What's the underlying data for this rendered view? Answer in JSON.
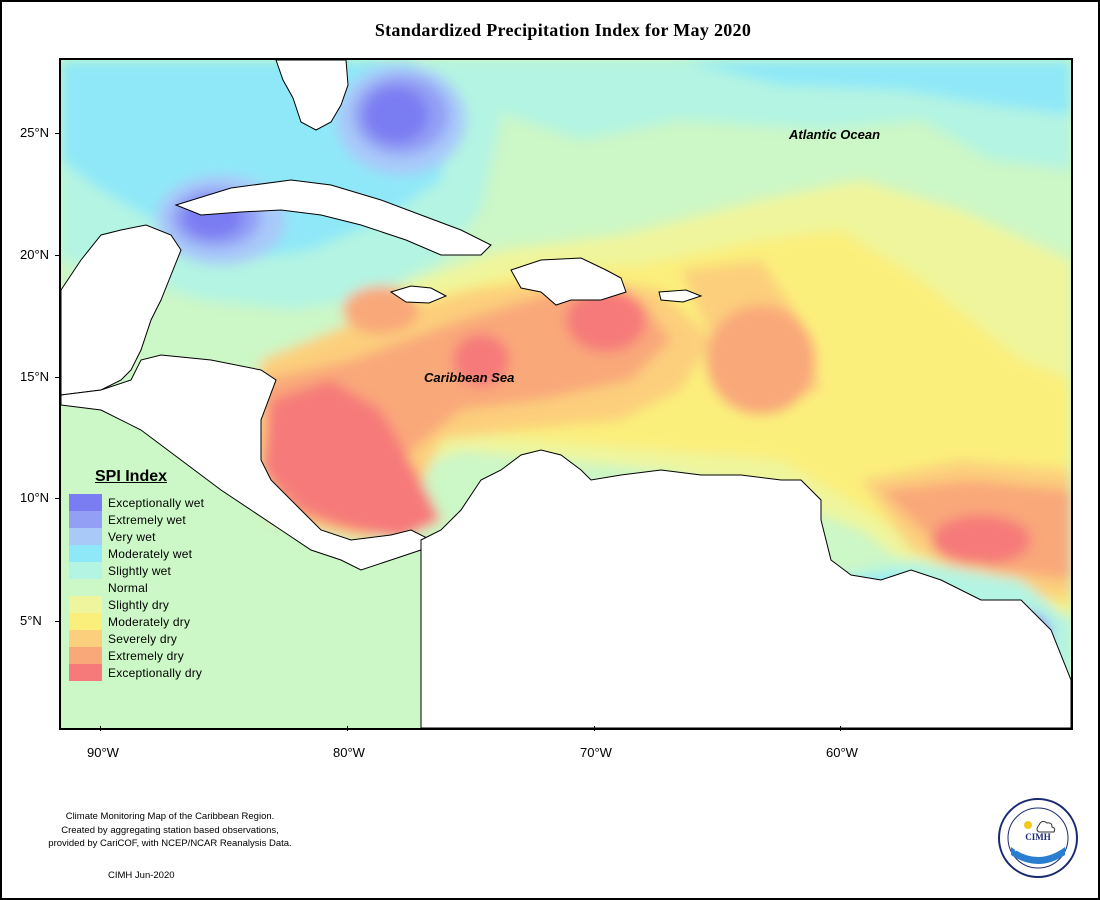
{
  "title": "Standardized Precipitation Index for May 2020",
  "map": {
    "ocean_labels": {
      "atlantic": "Atlantic Ocean",
      "caribbean": "Caribbean Sea"
    },
    "lat_labels": [
      "25°N",
      "20°N",
      "15°N",
      "10°N",
      "5°N"
    ],
    "lon_labels": [
      "90°W",
      "80°W",
      "70°W",
      "60°W"
    ],
    "colors": {
      "exceptionally_wet": "#7a7cf2",
      "extremely_wet": "#939ff4",
      "very_wet": "#a9c9f9",
      "moderately_wet": "#8fe8f8",
      "slightly_wet": "#b4f4e2",
      "normal": "#ccf7c6",
      "slightly_dry": "#eff59c",
      "moderately_dry": "#fbef7c",
      "severely_dry": "#fccf7c",
      "extremely_dry": "#f9a87a",
      "exceptionally_dry": "#f67a7a",
      "land": "#ffffff"
    }
  },
  "legend": {
    "title": "SPI Index",
    "items": [
      {
        "label": "Exceptionally wet",
        "color": "#7a7cf2"
      },
      {
        "label": "Extremely wet",
        "color": "#939ff4"
      },
      {
        "label": "Very wet",
        "color": "#a9c9f9"
      },
      {
        "label": "Moderately wet",
        "color": "#8fe8f8"
      },
      {
        "label": "Slightly wet",
        "color": "#b4f4e2"
      },
      {
        "label": "Normal",
        "color": "#ccf7c6"
      },
      {
        "label": "Slightly dry",
        "color": "#eff59c"
      },
      {
        "label": "Moderately dry",
        "color": "#fbef7c"
      },
      {
        "label": "Severely dry",
        "color": "#fccf7c"
      },
      {
        "label": "Extremely dry",
        "color": "#f9a87a"
      },
      {
        "label": "Exceptionally dry",
        "color": "#f67a7a"
      }
    ]
  },
  "credits": {
    "line1": "Climate Monitoring Map of the Caribbean Region.",
    "line2": "Created by aggregating station based observations,",
    "line3": "provided by CariCOF, with NCEP/NCAR Reanalysis Data.",
    "date": "CIMH Jun-2020"
  },
  "logo": {
    "text": "CIMH",
    "icon": "cimh-logo-icon"
  }
}
